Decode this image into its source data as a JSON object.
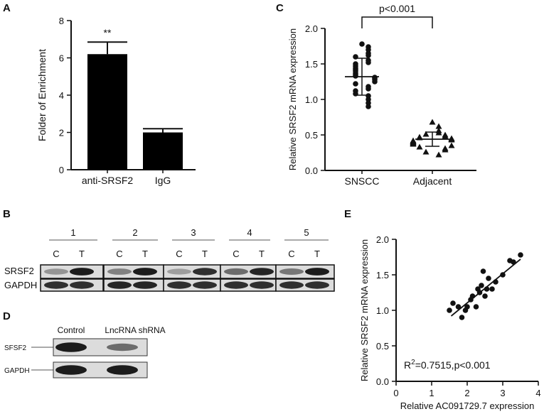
{
  "panel_labels": {
    "a": "A",
    "b": "B",
    "c": "C",
    "d": "D",
    "e": "E"
  },
  "colors": {
    "ink": "#111111",
    "bar": "#000000",
    "blot_bg": "#dcdcdc"
  },
  "chart_data": [
    {
      "panel": "A",
      "type": "bar",
      "categories": [
        "anti-SRSF2",
        "IgG"
      ],
      "values": [
        6.2,
        2.0
      ],
      "error": [
        0.65,
        0.2
      ],
      "annotations": [
        "**",
        ""
      ],
      "ylabel": "Folder of Enrichment",
      "ylim": [
        0,
        8
      ],
      "yticks": [
        0,
        2,
        4,
        6,
        8
      ],
      "grid": false
    },
    {
      "panel": "C",
      "type": "scatter",
      "categories": [
        "SNSCC",
        "Adjacent"
      ],
      "series": [
        {
          "category": "SNSCC",
          "marker": "circle",
          "mean": 1.32,
          "sd": 0.26,
          "values": [
            1.78,
            1.74,
            1.7,
            1.65,
            1.62,
            1.6,
            1.55,
            1.52,
            1.5,
            1.47,
            1.44,
            1.42,
            1.4,
            1.37,
            1.35,
            1.33,
            1.31,
            1.3,
            1.28,
            1.25,
            1.22,
            1.18,
            1.15,
            1.12,
            1.08,
            1.05,
            1.0,
            0.95,
            0.9
          ]
        },
        {
          "category": "Adjacent",
          "marker": "triangle",
          "mean": 0.44,
          "sd": 0.1,
          "values": [
            0.68,
            0.62,
            0.56,
            0.53,
            0.51,
            0.5,
            0.48,
            0.47,
            0.46,
            0.45,
            0.44,
            0.43,
            0.42,
            0.41,
            0.4,
            0.39,
            0.38,
            0.37,
            0.35,
            0.33,
            0.31,
            0.29,
            0.26,
            0.22
          ]
        }
      ],
      "annotation": "p<0.001",
      "ylabel": "Relative SRSF2 mRNA expression",
      "ylim": [
        0,
        2.0
      ],
      "yticks": [
        "0.0",
        "0.5",
        "1.0",
        "1.5",
        "2.0"
      ],
      "grid": false
    },
    {
      "panel": "E",
      "type": "scatter",
      "x": [
        1.5,
        1.6,
        1.75,
        1.85,
        1.95,
        2.0,
        2.1,
        2.15,
        2.25,
        2.3,
        2.35,
        2.4,
        2.45,
        2.5,
        2.55,
        2.6,
        2.7,
        2.8,
        3.0,
        3.2,
        3.3,
        3.5
      ],
      "y": [
        1.0,
        1.1,
        1.05,
        0.9,
        1.0,
        1.05,
        1.15,
        1.2,
        1.05,
        1.3,
        1.25,
        1.35,
        1.55,
        1.2,
        1.3,
        1.45,
        1.3,
        1.4,
        1.5,
        1.7,
        1.68,
        1.78
      ],
      "fit_line": {
        "x": [
          1.55,
          3.5
        ],
        "y": [
          0.92,
          1.72
        ]
      },
      "annotation_base": "R",
      "annotation_sup": "2",
      "annotation_rest": "=0.7515,p<0.001",
      "xlabel": "Relative AC091729.7 expression",
      "ylabel": "Relative SRSF2 mRNA expression",
      "xlim": [
        0,
        4
      ],
      "ylim": [
        0,
        2.0
      ],
      "xticks": [
        "0",
        "1",
        "2",
        "3",
        "4"
      ],
      "yticks": [
        "0.0",
        "0.5",
        "1.0",
        "1.5",
        "2.0"
      ],
      "grid": false
    }
  ],
  "blot_b": {
    "groups": [
      "1",
      "2",
      "3",
      "4",
      "5"
    ],
    "lane_labels": [
      "C",
      "T"
    ],
    "rows": [
      "SRSF2",
      "GAPDH"
    ],
    "intensity": {
      "SRSF2": [
        [
          0.35,
          0.95
        ],
        [
          0.45,
          0.95
        ],
        [
          0.3,
          0.85
        ],
        [
          0.55,
          0.9
        ],
        [
          0.5,
          0.95
        ]
      ],
      "GAPDH": [
        [
          0.85,
          0.85
        ],
        [
          0.9,
          0.9
        ],
        [
          0.85,
          0.85
        ],
        [
          0.85,
          0.85
        ],
        [
          0.85,
          0.85
        ]
      ]
    }
  },
  "blot_d": {
    "lanes": [
      "Control",
      "LncRNA shRNA"
    ],
    "rows": [
      "SFSF2",
      "GAPDH"
    ],
    "intensity": {
      "SFSF2": [
        0.95,
        0.55
      ],
      "GAPDH": [
        0.95,
        0.95
      ]
    }
  }
}
